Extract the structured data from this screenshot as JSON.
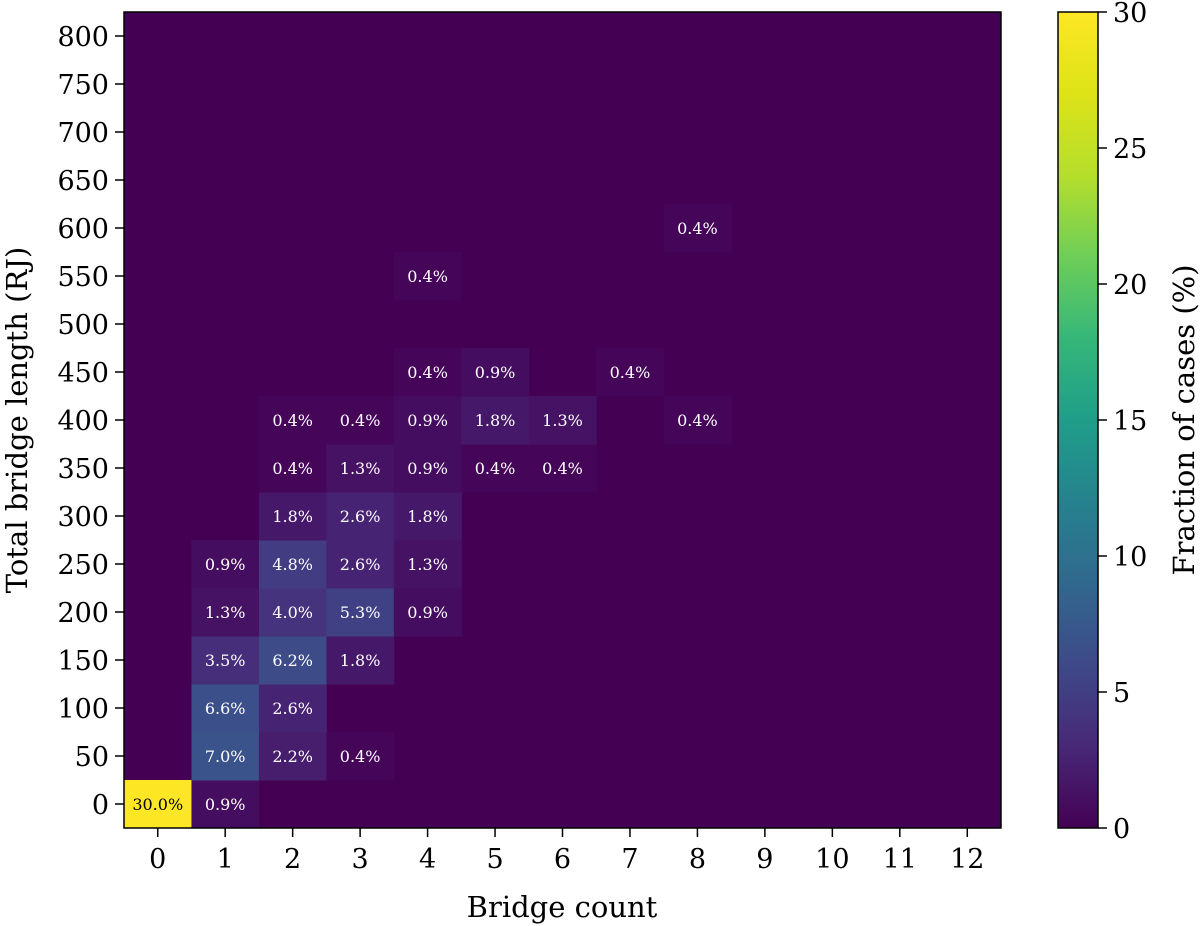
{
  "chart_data": {
    "type": "heatmap",
    "xlabel": "Bridge count",
    "ylabel": "Total bridge length (RJ)",
    "x_categories": [
      "0",
      "1",
      "2",
      "3",
      "4",
      "5",
      "6",
      "7",
      "8",
      "9",
      "10",
      "11",
      "12"
    ],
    "y_categories": [
      "0",
      "50",
      "100",
      "150",
      "200",
      "250",
      "300",
      "350",
      "400",
      "450",
      "500",
      "550",
      "600",
      "650",
      "700",
      "750",
      "800"
    ],
    "colorbar": {
      "label": "Fraction of cases (%)",
      "range": [
        0,
        30
      ],
      "ticks": [
        "0",
        "5",
        "10",
        "15",
        "20",
        "25",
        "30"
      ],
      "colormap": "viridis"
    },
    "cells": [
      {
        "x": 0,
        "y": 0,
        "value": 30.0,
        "label": "30.0%"
      },
      {
        "x": 1,
        "y": 0,
        "value": 0.9,
        "label": "0.9%"
      },
      {
        "x": 1,
        "y": 50,
        "value": 7.0,
        "label": "7.0%"
      },
      {
        "x": 2,
        "y": 50,
        "value": 2.2,
        "label": "2.2%"
      },
      {
        "x": 3,
        "y": 50,
        "value": 0.4,
        "label": "0.4%"
      },
      {
        "x": 1,
        "y": 100,
        "value": 6.6,
        "label": "6.6%"
      },
      {
        "x": 2,
        "y": 100,
        "value": 2.6,
        "label": "2.6%"
      },
      {
        "x": 1,
        "y": 150,
        "value": 3.5,
        "label": "3.5%"
      },
      {
        "x": 2,
        "y": 150,
        "value": 6.2,
        "label": "6.2%"
      },
      {
        "x": 3,
        "y": 150,
        "value": 1.8,
        "label": "1.8%"
      },
      {
        "x": 1,
        "y": 200,
        "value": 1.3,
        "label": "1.3%"
      },
      {
        "x": 2,
        "y": 200,
        "value": 4.0,
        "label": "4.0%"
      },
      {
        "x": 3,
        "y": 200,
        "value": 5.3,
        "label": "5.3%"
      },
      {
        "x": 4,
        "y": 200,
        "value": 0.9,
        "label": "0.9%"
      },
      {
        "x": 1,
        "y": 250,
        "value": 0.9,
        "label": "0.9%"
      },
      {
        "x": 2,
        "y": 250,
        "value": 4.8,
        "label": "4.8%"
      },
      {
        "x": 3,
        "y": 250,
        "value": 2.6,
        "label": "2.6%"
      },
      {
        "x": 4,
        "y": 250,
        "value": 1.3,
        "label": "1.3%"
      },
      {
        "x": 2,
        "y": 300,
        "value": 1.8,
        "label": "1.8%"
      },
      {
        "x": 3,
        "y": 300,
        "value": 2.6,
        "label": "2.6%"
      },
      {
        "x": 4,
        "y": 300,
        "value": 1.8,
        "label": "1.8%"
      },
      {
        "x": 2,
        "y": 350,
        "value": 0.4,
        "label": "0.4%"
      },
      {
        "x": 3,
        "y": 350,
        "value": 1.3,
        "label": "1.3%"
      },
      {
        "x": 4,
        "y": 350,
        "value": 0.9,
        "label": "0.9%"
      },
      {
        "x": 5,
        "y": 350,
        "value": 0.4,
        "label": "0.4%"
      },
      {
        "x": 6,
        "y": 350,
        "value": 0.4,
        "label": "0.4%"
      },
      {
        "x": 2,
        "y": 400,
        "value": 0.4,
        "label": "0.4%"
      },
      {
        "x": 3,
        "y": 400,
        "value": 0.4,
        "label": "0.4%"
      },
      {
        "x": 4,
        "y": 400,
        "value": 0.9,
        "label": "0.9%"
      },
      {
        "x": 5,
        "y": 400,
        "value": 1.8,
        "label": "1.8%"
      },
      {
        "x": 6,
        "y": 400,
        "value": 1.3,
        "label": "1.3%"
      },
      {
        "x": 8,
        "y": 400,
        "value": 0.4,
        "label": "0.4%"
      },
      {
        "x": 4,
        "y": 450,
        "value": 0.4,
        "label": "0.4%"
      },
      {
        "x": 5,
        "y": 450,
        "value": 0.9,
        "label": "0.9%"
      },
      {
        "x": 7,
        "y": 450,
        "value": 0.4,
        "label": "0.4%"
      },
      {
        "x": 4,
        "y": 550,
        "value": 0.4,
        "label": "0.4%"
      },
      {
        "x": 8,
        "y": 600,
        "value": 0.4,
        "label": "0.4%"
      }
    ]
  }
}
